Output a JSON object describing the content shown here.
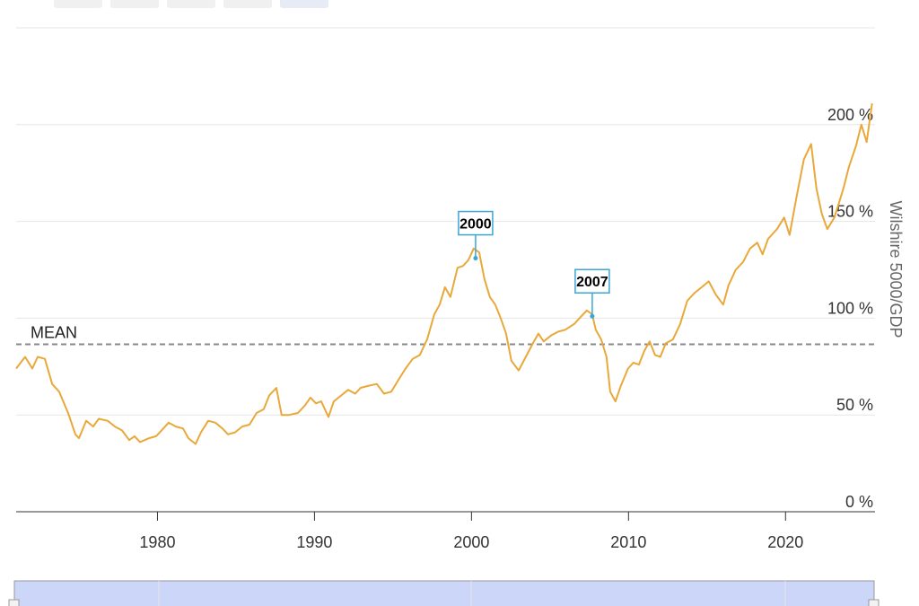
{
  "chart_data": {
    "type": "line",
    "y_axis_title": "Wilshire 5000/GDP",
    "xlim": [
      1971,
      2025.7
    ],
    "xticks": [
      1980,
      1990,
      2000,
      2010,
      2020
    ],
    "ylim": [
      0,
      250
    ],
    "yticks": [
      {
        "value": 0,
        "label": "0 %"
      },
      {
        "value": 50,
        "label": "50 %"
      },
      {
        "value": 100,
        "label": "100 %"
      },
      {
        "value": 150,
        "label": "150 %"
      },
      {
        "value": 200,
        "label": "200 %"
      }
    ],
    "grid": true,
    "color": "#e8a93a",
    "mean": {
      "label": "MEAN",
      "value": 86.5
    },
    "annotations": [
      {
        "label": "2000",
        "x": 2000.26,
        "y": 131
      },
      {
        "label": "2007",
        "x": 2007.69,
        "y": 101
      }
    ],
    "x": [
      1971.0,
      1971.57,
      1972.03,
      1972.37,
      1972.83,
      1973.29,
      1973.74,
      1974.31,
      1974.77,
      1975.0,
      1975.46,
      1975.91,
      1976.26,
      1976.83,
      1977.29,
      1977.74,
      1978.2,
      1978.54,
      1978.89,
      1979.46,
      1979.91,
      1980.26,
      1980.71,
      1981.17,
      1981.63,
      1981.97,
      1982.43,
      1982.77,
      1983.23,
      1983.69,
      1984.14,
      1984.49,
      1984.94,
      1985.4,
      1985.86,
      1986.31,
      1986.77,
      1987.11,
      1987.57,
      1987.91,
      1988.37,
      1988.94,
      1989.4,
      1989.74,
      1990.09,
      1990.43,
      1990.89,
      1991.23,
      1991.69,
      1992.14,
      1992.6,
      1992.94,
      1993.4,
      1993.97,
      1994.43,
      1994.89,
      1995.34,
      1995.8,
      1996.26,
      1996.71,
      1997.17,
      1997.63,
      1997.97,
      1998.31,
      1998.66,
      1999.11,
      1999.46,
      1999.8,
      2000.14,
      2000.49,
      2000.83,
      2001.17,
      2001.51,
      2001.86,
      2002.2,
      2002.54,
      2003.0,
      2003.46,
      2003.91,
      2004.26,
      2004.6,
      2005.06,
      2005.51,
      2005.97,
      2006.54,
      2007.0,
      2007.34,
      2007.69,
      2007.91,
      2008.26,
      2008.6,
      2008.83,
      2009.17,
      2009.51,
      2009.97,
      2010.31,
      2010.66,
      2011.0,
      2011.34,
      2011.69,
      2012.03,
      2012.37,
      2012.83,
      2013.29,
      2013.74,
      2014.2,
      2014.66,
      2015.11,
      2015.57,
      2016.03,
      2016.37,
      2016.83,
      2017.29,
      2017.74,
      2018.2,
      2018.54,
      2018.89,
      2019.46,
      2019.91,
      2020.26,
      2020.71,
      2021.17,
      2021.63,
      2021.97,
      2022.31,
      2022.66,
      2023.11,
      2023.69,
      2024.03,
      2024.49,
      2024.83,
      2025.17,
      2025.51
    ],
    "values": [
      74,
      80,
      74,
      80,
      79,
      66,
      62,
      51,
      40,
      38,
      47,
      44,
      48,
      47,
      44,
      42,
      37,
      39,
      36,
      38,
      39,
      42,
      46,
      44,
      43,
      38,
      35,
      41,
      47,
      46,
      43,
      40,
      41,
      44,
      45,
      51,
      53,
      60,
      64,
      50,
      50,
      51,
      55,
      59,
      56,
      57,
      49,
      57,
      60,
      63,
      61,
      64,
      65,
      66,
      61,
      62,
      68,
      74,
      79,
      81,
      89,
      102,
      107,
      116,
      111,
      126,
      127,
      130,
      136,
      134,
      120,
      111,
      107,
      100,
      92,
      78,
      73,
      80,
      87,
      92,
      88,
      91,
      93,
      94,
      97,
      101,
      104,
      102,
      94,
      89,
      80,
      62,
      57,
      65,
      74,
      77,
      76,
      83,
      88,
      81,
      80,
      87,
      89,
      97,
      109,
      113,
      116,
      119,
      112,
      107,
      117,
      125,
      129,
      136,
      139,
      133,
      141,
      146,
      152,
      143,
      163,
      182,
      190,
      167,
      154,
      146,
      152,
      167,
      178,
      189,
      200,
      191,
      211
    ]
  }
}
